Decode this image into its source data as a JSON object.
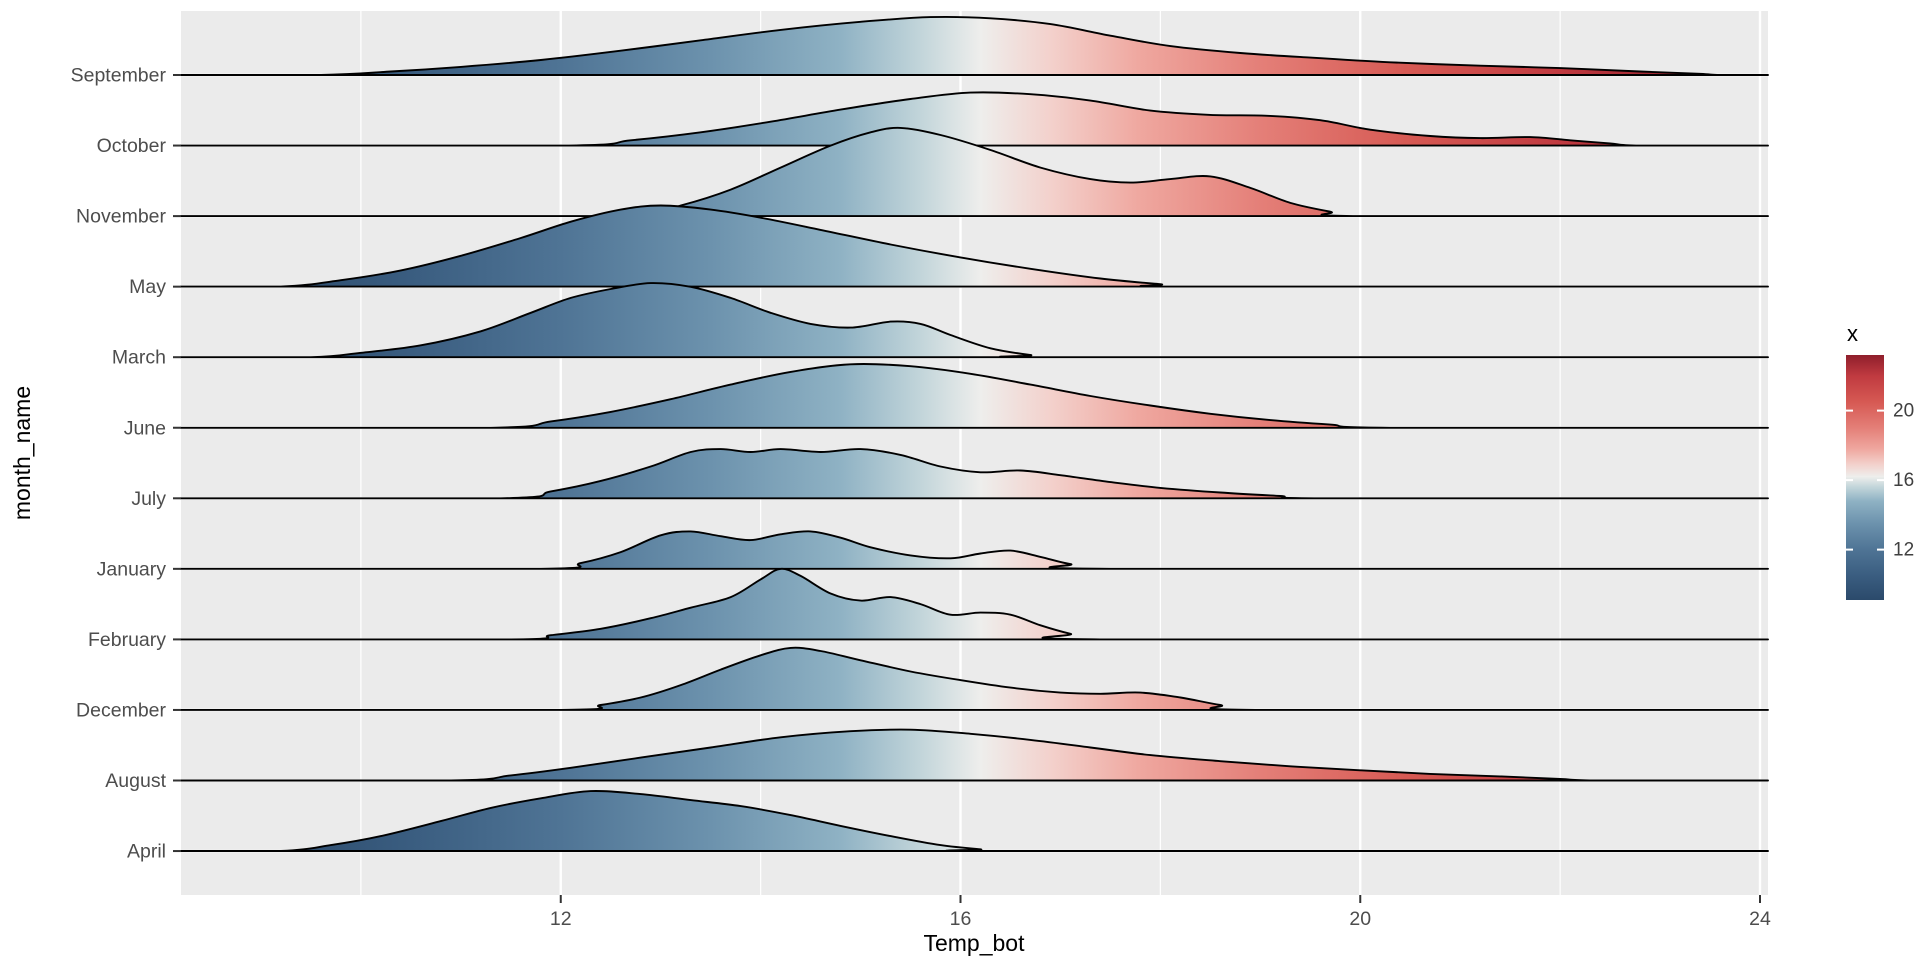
{
  "figure": {
    "background": "#ffffff",
    "panel_bg": "#EBEBEB",
    "grid_color": "#FFFFFF",
    "ridge_stroke": "#000000",
    "tick_color": "#333333"
  },
  "chart_data": {
    "type": "ridgeline",
    "title": "",
    "xlabel": "Temp_bot",
    "ylabel": "month_name",
    "x_ticks": [
      12,
      16,
      20,
      24
    ],
    "x_minor_ticks": [
      10,
      14,
      18,
      22
    ],
    "xlim": [
      8.2,
      24.08
    ],
    "grid": true,
    "legend_position": "right",
    "categories": [
      "September",
      "October",
      "November",
      "May",
      "March",
      "June",
      "July",
      "January",
      "February",
      "December",
      "August",
      "April"
    ],
    "fill_scale": {
      "legend_title": "x",
      "legend_ticks": [
        20,
        16,
        12
      ],
      "legend_range": [
        9.1,
        23.2
      ],
      "stops": [
        [
          9.0,
          "#2b4a6b"
        ],
        [
          10.5,
          "#3a5d80"
        ],
        [
          12.0,
          "#4f7495"
        ],
        [
          13.5,
          "#6c92ad"
        ],
        [
          14.8,
          "#8fb2c4"
        ],
        [
          15.6,
          "#c2d5da"
        ],
        [
          16.2,
          "#eeeeec"
        ],
        [
          16.9,
          "#f3d1cc"
        ],
        [
          17.8,
          "#efa79f"
        ],
        [
          19.0,
          "#e47f78"
        ],
        [
          20.5,
          "#d65953"
        ],
        [
          22.0,
          "#c03a40"
        ],
        [
          23.5,
          "#8f1e2b"
        ]
      ]
    },
    "series": [
      {
        "name": "September",
        "amp": 0.82,
        "points": [
          [
            9.6,
            0
          ],
          [
            10.3,
            0.06
          ],
          [
            11,
            0.14
          ],
          [
            11.8,
            0.26
          ],
          [
            12.6,
            0.42
          ],
          [
            13.4,
            0.6
          ],
          [
            14.2,
            0.78
          ],
          [
            15,
            0.92
          ],
          [
            15.7,
            1
          ],
          [
            16.3,
            0.98
          ],
          [
            16.9,
            0.88
          ],
          [
            17.5,
            0.68
          ],
          [
            18.1,
            0.5
          ],
          [
            18.8,
            0.38
          ],
          [
            19.5,
            0.3
          ],
          [
            20.3,
            0.22
          ],
          [
            21.2,
            0.16
          ],
          [
            22,
            0.12
          ],
          [
            22.8,
            0.06
          ],
          [
            23.4,
            0.02
          ],
          [
            23.6,
            0
          ]
        ]
      },
      {
        "name": "October",
        "amp": 0.75,
        "points": [
          [
            12,
            0
          ],
          [
            12.7,
            0.1
          ],
          [
            13.4,
            0.25
          ],
          [
            14.1,
            0.45
          ],
          [
            14.8,
            0.68
          ],
          [
            15.5,
            0.88
          ],
          [
            16.1,
            1
          ],
          [
            16.7,
            0.97
          ],
          [
            17.3,
            0.85
          ],
          [
            17.9,
            0.66
          ],
          [
            18.5,
            0.58
          ],
          [
            19.1,
            0.56
          ],
          [
            19.6,
            0.48
          ],
          [
            20.1,
            0.3
          ],
          [
            20.7,
            0.18
          ],
          [
            21.2,
            0.14
          ],
          [
            21.7,
            0.16
          ],
          [
            22.1,
            0.1
          ],
          [
            22.5,
            0.04
          ],
          [
            22.8,
            0
          ]
        ]
      },
      {
        "name": "November",
        "amp": 1.25,
        "points": [
          [
            12.7,
            0
          ],
          [
            13.2,
            0.12
          ],
          [
            13.7,
            0.3
          ],
          [
            14.2,
            0.55
          ],
          [
            14.7,
            0.8
          ],
          [
            15.1,
            0.95
          ],
          [
            15.4,
            1
          ],
          [
            15.8,
            0.92
          ],
          [
            16.3,
            0.75
          ],
          [
            16.8,
            0.55
          ],
          [
            17.3,
            0.42
          ],
          [
            17.7,
            0.38
          ],
          [
            18.1,
            0.42
          ],
          [
            18.5,
            0.45
          ],
          [
            18.9,
            0.32
          ],
          [
            19.3,
            0.15
          ],
          [
            19.7,
            0.05
          ],
          [
            20,
            0
          ]
        ]
      },
      {
        "name": "May",
        "amp": 1.15,
        "points": [
          [
            9.2,
            0
          ],
          [
            9.8,
            0.08
          ],
          [
            10.4,
            0.2
          ],
          [
            11,
            0.38
          ],
          [
            11.6,
            0.6
          ],
          [
            12.1,
            0.8
          ],
          [
            12.6,
            0.95
          ],
          [
            13,
            1
          ],
          [
            13.5,
            0.95
          ],
          [
            14,
            0.85
          ],
          [
            14.6,
            0.7
          ],
          [
            15.3,
            0.52
          ],
          [
            16,
            0.36
          ],
          [
            16.7,
            0.22
          ],
          [
            17.4,
            0.1
          ],
          [
            18,
            0.03
          ],
          [
            18.3,
            0
          ]
        ]
      },
      {
        "name": "March",
        "amp": 1.05,
        "points": [
          [
            9.5,
            0
          ],
          [
            10,
            0.06
          ],
          [
            10.6,
            0.16
          ],
          [
            11.2,
            0.35
          ],
          [
            11.7,
            0.6
          ],
          [
            12.1,
            0.8
          ],
          [
            12.5,
            0.92
          ],
          [
            12.9,
            1
          ],
          [
            13.3,
            0.95
          ],
          [
            13.7,
            0.8
          ],
          [
            14.1,
            0.6
          ],
          [
            14.5,
            0.45
          ],
          [
            14.9,
            0.4
          ],
          [
            15.3,
            0.48
          ],
          [
            15.6,
            0.45
          ],
          [
            15.9,
            0.3
          ],
          [
            16.3,
            0.12
          ],
          [
            16.7,
            0.03
          ],
          [
            17,
            0
          ]
        ]
      },
      {
        "name": "June",
        "amp": 0.9,
        "points": [
          [
            11.3,
            0
          ],
          [
            11.9,
            0.1
          ],
          [
            12.5,
            0.25
          ],
          [
            13.1,
            0.45
          ],
          [
            13.7,
            0.68
          ],
          [
            14.3,
            0.88
          ],
          [
            14.9,
            1
          ],
          [
            15.5,
            0.97
          ],
          [
            16.1,
            0.85
          ],
          [
            16.7,
            0.68
          ],
          [
            17.3,
            0.5
          ],
          [
            17.9,
            0.35
          ],
          [
            18.5,
            0.22
          ],
          [
            19.1,
            0.12
          ],
          [
            19.7,
            0.05
          ],
          [
            20.3,
            0
          ]
        ]
      },
      {
        "name": "July",
        "amp": 0.82,
        "points": [
          [
            11.4,
            0
          ],
          [
            11.9,
            0.12
          ],
          [
            12.4,
            0.3
          ],
          [
            12.9,
            0.55
          ],
          [
            13.3,
            0.8
          ],
          [
            13.6,
            0.85
          ],
          [
            13.9,
            0.8
          ],
          [
            14.2,
            0.85
          ],
          [
            14.6,
            0.8
          ],
          [
            15,
            0.85
          ],
          [
            15.4,
            0.75
          ],
          [
            15.8,
            0.55
          ],
          [
            16.2,
            0.45
          ],
          [
            16.6,
            0.48
          ],
          [
            17,
            0.4
          ],
          [
            17.5,
            0.28
          ],
          [
            18,
            0.18
          ],
          [
            18.6,
            0.1
          ],
          [
            19.2,
            0.04
          ],
          [
            19.7,
            0
          ]
        ]
      },
      {
        "name": "January",
        "amp": 0.68,
        "points": [
          [
            11.8,
            0
          ],
          [
            12.2,
            0.12
          ],
          [
            12.6,
            0.35
          ],
          [
            13,
            0.7
          ],
          [
            13.3,
            0.78
          ],
          [
            13.6,
            0.68
          ],
          [
            13.9,
            0.6
          ],
          [
            14.2,
            0.72
          ],
          [
            14.5,
            0.78
          ],
          [
            14.8,
            0.65
          ],
          [
            15.1,
            0.45
          ],
          [
            15.5,
            0.28
          ],
          [
            15.9,
            0.22
          ],
          [
            16.2,
            0.32
          ],
          [
            16.5,
            0.38
          ],
          [
            16.8,
            0.25
          ],
          [
            17.1,
            0.1
          ],
          [
            17.5,
            0
          ]
        ]
      },
      {
        "name": "February",
        "amp": 1.0,
        "points": [
          [
            11.5,
            0
          ],
          [
            11.9,
            0.06
          ],
          [
            12.4,
            0.15
          ],
          [
            12.9,
            0.3
          ],
          [
            13.3,
            0.45
          ],
          [
            13.7,
            0.6
          ],
          [
            14,
            0.85
          ],
          [
            14.2,
            1
          ],
          [
            14.4,
            0.9
          ],
          [
            14.7,
            0.65
          ],
          [
            15,
            0.55
          ],
          [
            15.3,
            0.6
          ],
          [
            15.6,
            0.5
          ],
          [
            15.9,
            0.35
          ],
          [
            16.2,
            0.38
          ],
          [
            16.5,
            0.35
          ],
          [
            16.8,
            0.2
          ],
          [
            17.1,
            0.08
          ],
          [
            17.4,
            0
          ]
        ]
      },
      {
        "name": "December",
        "amp": 0.88,
        "points": [
          [
            12,
            0
          ],
          [
            12.4,
            0.08
          ],
          [
            12.8,
            0.2
          ],
          [
            13.2,
            0.4
          ],
          [
            13.6,
            0.65
          ],
          [
            14,
            0.88
          ],
          [
            14.3,
            1
          ],
          [
            14.6,
            0.95
          ],
          [
            15,
            0.8
          ],
          [
            15.5,
            0.62
          ],
          [
            16,
            0.48
          ],
          [
            16.5,
            0.36
          ],
          [
            17,
            0.28
          ],
          [
            17.4,
            0.26
          ],
          [
            17.8,
            0.28
          ],
          [
            18.2,
            0.2
          ],
          [
            18.6,
            0.08
          ],
          [
            19,
            0
          ]
        ]
      },
      {
        "name": "August",
        "amp": 0.72,
        "points": [
          [
            10.9,
            0
          ],
          [
            11.5,
            0.1
          ],
          [
            12.1,
            0.25
          ],
          [
            12.8,
            0.45
          ],
          [
            13.5,
            0.65
          ],
          [
            14.2,
            0.85
          ],
          [
            14.9,
            0.97
          ],
          [
            15.5,
            1
          ],
          [
            16.1,
            0.92
          ],
          [
            16.7,
            0.8
          ],
          [
            17.3,
            0.65
          ],
          [
            17.9,
            0.5
          ],
          [
            18.6,
            0.38
          ],
          [
            19.3,
            0.28
          ],
          [
            20,
            0.2
          ],
          [
            20.7,
            0.13
          ],
          [
            21.4,
            0.08
          ],
          [
            22,
            0.03
          ],
          [
            22.4,
            0
          ]
        ]
      },
      {
        "name": "April",
        "amp": 0.85,
        "points": [
          [
            9.2,
            0
          ],
          [
            9.7,
            0.1
          ],
          [
            10.2,
            0.25
          ],
          [
            10.8,
            0.5
          ],
          [
            11.3,
            0.72
          ],
          [
            11.8,
            0.88
          ],
          [
            12.3,
            1
          ],
          [
            12.8,
            0.95
          ],
          [
            13.3,
            0.85
          ],
          [
            13.8,
            0.75
          ],
          [
            14.3,
            0.6
          ],
          [
            14.8,
            0.42
          ],
          [
            15.3,
            0.25
          ],
          [
            15.8,
            0.1
          ],
          [
            16.2,
            0.03
          ],
          [
            16.5,
            0
          ]
        ]
      }
    ]
  }
}
